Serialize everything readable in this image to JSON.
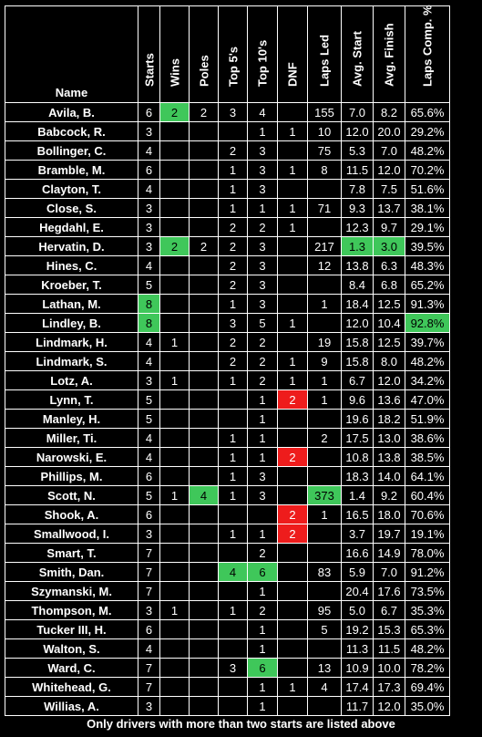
{
  "headers": {
    "name": "Name",
    "starts": "Starts",
    "wins": "Wins",
    "poles": "Poles",
    "top5": "Top 5's",
    "top10": "Top 10's",
    "dnf": "DNF",
    "laps_led": "Laps Led",
    "avg_start": "Avg. Start",
    "avg_finish": "Avg. Finish",
    "laps_comp": "Laps Comp. %"
  },
  "highlight_colors": {
    "green": "#3fc75a",
    "red": "#ee1c1c"
  },
  "rows": [
    {
      "name": "Avila, B.",
      "starts": "6",
      "wins": "2",
      "poles": "2",
      "top5": "3",
      "top10": "4",
      "dnf": "",
      "laps_led": "155",
      "avg_start": "7.0",
      "avg_finish": "8.2",
      "laps_comp": "65.6%",
      "hl": {
        "wins": "green"
      }
    },
    {
      "name": "Babcock, R.",
      "starts": "3",
      "wins": "",
      "poles": "",
      "top5": "",
      "top10": "1",
      "dnf": "1",
      "laps_led": "10",
      "avg_start": "12.0",
      "avg_finish": "20.0",
      "laps_comp": "29.2%",
      "hl": {}
    },
    {
      "name": "Bollinger, C.",
      "starts": "4",
      "wins": "",
      "poles": "",
      "top5": "2",
      "top10": "3",
      "dnf": "",
      "laps_led": "75",
      "avg_start": "5.3",
      "avg_finish": "7.0",
      "laps_comp": "48.2%",
      "hl": {}
    },
    {
      "name": "Bramble, M.",
      "starts": "6",
      "wins": "",
      "poles": "",
      "top5": "1",
      "top10": "3",
      "dnf": "1",
      "laps_led": "8",
      "avg_start": "11.5",
      "avg_finish": "12.0",
      "laps_comp": "70.2%",
      "hl": {}
    },
    {
      "name": "Clayton, T.",
      "starts": "4",
      "wins": "",
      "poles": "",
      "top5": "1",
      "top10": "3",
      "dnf": "",
      "laps_led": "",
      "avg_start": "7.8",
      "avg_finish": "7.5",
      "laps_comp": "51.6%",
      "hl": {}
    },
    {
      "name": "Close, S.",
      "starts": "3",
      "wins": "",
      "poles": "",
      "top5": "1",
      "top10": "1",
      "dnf": "1",
      "laps_led": "71",
      "avg_start": "9.3",
      "avg_finish": "13.7",
      "laps_comp": "38.1%",
      "hl": {}
    },
    {
      "name": "Hegdahl, E.",
      "starts": "3",
      "wins": "",
      "poles": "",
      "top5": "2",
      "top10": "2",
      "dnf": "1",
      "laps_led": "",
      "avg_start": "12.3",
      "avg_finish": "9.7",
      "laps_comp": "29.1%",
      "hl": {}
    },
    {
      "name": "Hervatin, D.",
      "starts": "3",
      "wins": "2",
      "poles": "2",
      "top5": "2",
      "top10": "3",
      "dnf": "",
      "laps_led": "217",
      "avg_start": "1.3",
      "avg_finish": "3.0",
      "laps_comp": "39.5%",
      "hl": {
        "wins": "green",
        "avg_start": "green",
        "avg_finish": "green"
      }
    },
    {
      "name": "Hines, C.",
      "starts": "4",
      "wins": "",
      "poles": "",
      "top5": "2",
      "top10": "3",
      "dnf": "",
      "laps_led": "12",
      "avg_start": "13.8",
      "avg_finish": "6.3",
      "laps_comp": "48.3%",
      "hl": {}
    },
    {
      "name": "Kroeber, T.",
      "starts": "5",
      "wins": "",
      "poles": "",
      "top5": "2",
      "top10": "3",
      "dnf": "",
      "laps_led": "",
      "avg_start": "8.4",
      "avg_finish": "6.8",
      "laps_comp": "65.2%",
      "hl": {}
    },
    {
      "name": "Lathan, M.",
      "starts": "8",
      "wins": "",
      "poles": "",
      "top5": "1",
      "top10": "3",
      "dnf": "",
      "laps_led": "1",
      "avg_start": "18.4",
      "avg_finish": "12.5",
      "laps_comp": "91.3%",
      "hl": {
        "starts": "green"
      }
    },
    {
      "name": "Lindley, B.",
      "starts": "8",
      "wins": "",
      "poles": "",
      "top5": "3",
      "top10": "5",
      "dnf": "1",
      "laps_led": "",
      "avg_start": "12.0",
      "avg_finish": "10.4",
      "laps_comp": "92.8%",
      "hl": {
        "starts": "green",
        "laps_comp": "green"
      }
    },
    {
      "name": "Lindmark, H.",
      "starts": "4",
      "wins": "1",
      "poles": "",
      "top5": "2",
      "top10": "2",
      "dnf": "",
      "laps_led": "19",
      "avg_start": "15.8",
      "avg_finish": "12.5",
      "laps_comp": "39.7%",
      "hl": {}
    },
    {
      "name": "Lindmark, S.",
      "starts": "4",
      "wins": "",
      "poles": "",
      "top5": "2",
      "top10": "2",
      "dnf": "1",
      "laps_led": "9",
      "avg_start": "15.8",
      "avg_finish": "8.0",
      "laps_comp": "48.2%",
      "hl": {}
    },
    {
      "name": "Lotz, A.",
      "starts": "3",
      "wins": "1",
      "poles": "",
      "top5": "1",
      "top10": "2",
      "dnf": "1",
      "laps_led": "1",
      "avg_start": "6.7",
      "avg_finish": "12.0",
      "laps_comp": "34.2%",
      "hl": {}
    },
    {
      "name": "Lynn, T.",
      "starts": "5",
      "wins": "",
      "poles": "",
      "top5": "",
      "top10": "1",
      "dnf": "2",
      "laps_led": "1",
      "avg_start": "9.6",
      "avg_finish": "13.6",
      "laps_comp": "47.0%",
      "hl": {
        "dnf": "red"
      }
    },
    {
      "name": "Manley, H.",
      "starts": "5",
      "wins": "",
      "poles": "",
      "top5": "",
      "top10": "1",
      "dnf": "",
      "laps_led": "",
      "avg_start": "19.6",
      "avg_finish": "18.2",
      "laps_comp": "51.9%",
      "hl": {}
    },
    {
      "name": "Miller, Ti.",
      "starts": "4",
      "wins": "",
      "poles": "",
      "top5": "1",
      "top10": "1",
      "dnf": "",
      "laps_led": "2",
      "avg_start": "17.5",
      "avg_finish": "13.0",
      "laps_comp": "38.6%",
      "hl": {}
    },
    {
      "name": "Narowski, E.",
      "starts": "4",
      "wins": "",
      "poles": "",
      "top5": "1",
      "top10": "1",
      "dnf": "2",
      "laps_led": "",
      "avg_start": "10.8",
      "avg_finish": "13.8",
      "laps_comp": "38.5%",
      "hl": {
        "dnf": "red"
      }
    },
    {
      "name": "Phillips, M.",
      "starts": "6",
      "wins": "",
      "poles": "",
      "top5": "1",
      "top10": "3",
      "dnf": "",
      "laps_led": "",
      "avg_start": "18.3",
      "avg_finish": "14.0",
      "laps_comp": "64.1%",
      "hl": {}
    },
    {
      "name": "Scott, N.",
      "starts": "5",
      "wins": "1",
      "poles": "4",
      "top5": "1",
      "top10": "3",
      "dnf": "",
      "laps_led": "373",
      "avg_start": "1.4",
      "avg_finish": "9.2",
      "laps_comp": "60.4%",
      "hl": {
        "poles": "green",
        "laps_led": "green"
      }
    },
    {
      "name": "Shook, A.",
      "starts": "6",
      "wins": "",
      "poles": "",
      "top5": "",
      "top10": "",
      "dnf": "2",
      "laps_led": "1",
      "avg_start": "16.5",
      "avg_finish": "18.0",
      "laps_comp": "70.6%",
      "hl": {
        "dnf": "red"
      }
    },
    {
      "name": "Smallwood, I.",
      "starts": "3",
      "wins": "",
      "poles": "",
      "top5": "1",
      "top10": "1",
      "dnf": "2",
      "laps_led": "",
      "avg_start": "3.7",
      "avg_finish": "19.7",
      "laps_comp": "19.1%",
      "hl": {
        "dnf": "red"
      }
    },
    {
      "name": "Smart, T.",
      "starts": "7",
      "wins": "",
      "poles": "",
      "top5": "",
      "top10": "2",
      "dnf": "",
      "laps_led": "",
      "avg_start": "16.6",
      "avg_finish": "14.9",
      "laps_comp": "78.0%",
      "hl": {}
    },
    {
      "name": "Smith, Dan.",
      "starts": "7",
      "wins": "",
      "poles": "",
      "top5": "4",
      "top10": "6",
      "dnf": "",
      "laps_led": "83",
      "avg_start": "5.9",
      "avg_finish": "7.0",
      "laps_comp": "91.2%",
      "hl": {
        "top5": "green",
        "top10": "green"
      }
    },
    {
      "name": "Szymanski, M.",
      "starts": "7",
      "wins": "",
      "poles": "",
      "top5": "",
      "top10": "1",
      "dnf": "",
      "laps_led": "",
      "avg_start": "20.4",
      "avg_finish": "17.6",
      "laps_comp": "73.5%",
      "hl": {}
    },
    {
      "name": "Thompson, M.",
      "starts": "3",
      "wins": "1",
      "poles": "",
      "top5": "1",
      "top10": "2",
      "dnf": "",
      "laps_led": "95",
      "avg_start": "5.0",
      "avg_finish": "6.7",
      "laps_comp": "35.3%",
      "hl": {}
    },
    {
      "name": "Tucker III, H.",
      "starts": "6",
      "wins": "",
      "poles": "",
      "top5": "",
      "top10": "1",
      "dnf": "",
      "laps_led": "5",
      "avg_start": "19.2",
      "avg_finish": "15.3",
      "laps_comp": "65.3%",
      "hl": {}
    },
    {
      "name": "Walton, S.",
      "starts": "4",
      "wins": "",
      "poles": "",
      "top5": "",
      "top10": "1",
      "dnf": "",
      "laps_led": "",
      "avg_start": "11.3",
      "avg_finish": "11.5",
      "laps_comp": "48.2%",
      "hl": {}
    },
    {
      "name": "Ward, C.",
      "starts": "7",
      "wins": "",
      "poles": "",
      "top5": "3",
      "top10": "6",
      "dnf": "",
      "laps_led": "13",
      "avg_start": "10.9",
      "avg_finish": "10.0",
      "laps_comp": "78.2%",
      "hl": {
        "top10": "green"
      }
    },
    {
      "name": "Whitehead, G.",
      "starts": "7",
      "wins": "",
      "poles": "",
      "top5": "",
      "top10": "1",
      "dnf": "1",
      "laps_led": "4",
      "avg_start": "17.4",
      "avg_finish": "17.3",
      "laps_comp": "69.4%",
      "hl": {}
    },
    {
      "name": "Willias, A.",
      "starts": "3",
      "wins": "",
      "poles": "",
      "top5": "",
      "top10": "1",
      "dnf": "",
      "laps_led": "",
      "avg_start": "11.7",
      "avg_finish": "12.0",
      "laps_comp": "35.0%",
      "hl": {}
    }
  ],
  "footer": "Only drivers with more than two starts are listed above"
}
